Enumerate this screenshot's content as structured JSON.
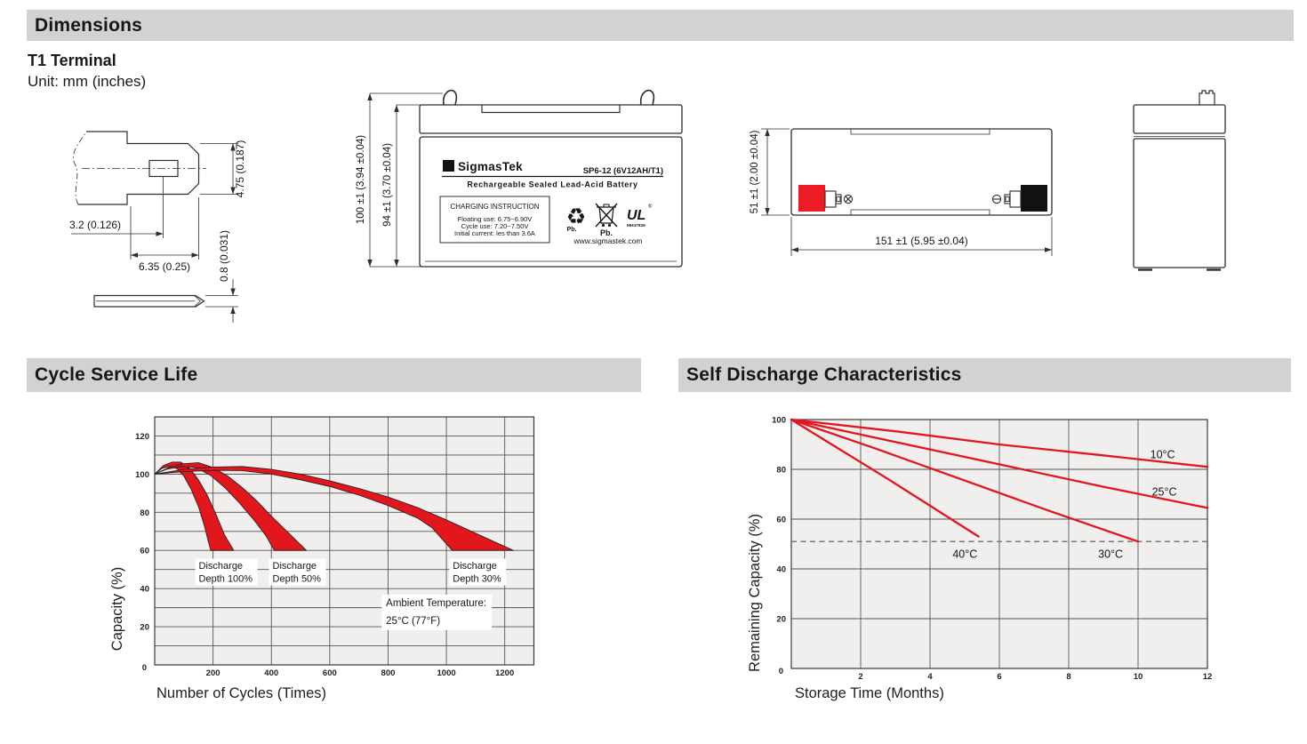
{
  "colors": {
    "header_bg": "#d2d2d2",
    "red": "#e2161d",
    "terminal_red": "#ed1c24",
    "terminal_black": "#111111",
    "plot_bg": "#f0efed",
    "grid": "#555555",
    "dashed_guide": "#7a7a7a"
  },
  "headers": {
    "dimensions": "Dimensions",
    "cycle": "Cycle Service Life",
    "self_discharge": "Self Discharge Characteristics"
  },
  "dimensions": {
    "terminal_title": "T1 Terminal",
    "unit_note": "Unit: mm (inches)",
    "t1": {
      "height": "4.75 (0.187)",
      "hole_offset": "3.2 (0.126)",
      "width": "6.35 (0.25)",
      "thickness": "0.8 (0.031)"
    },
    "front": {
      "overall_height": "100 ±1 (3.94 ±0.04)",
      "case_height": "94 ±1 (3.70 ±0.04)",
      "sigma": "Σ",
      "brand": "SigmasTek",
      "model": "SP6-12 (6V12AH/T1)",
      "type_line": "Rechargeable Sealed Lead-Acid Battery",
      "charging": {
        "title": "CHARGING INSTRUCTION",
        "floating": "Floating use: 6.75~6.90V",
        "cycle": "Cycle use: 7.20~7.50V",
        "initial": "Initial current: les than 3.6A"
      },
      "recycle_glyph": "♻",
      "pb1": "Pb.",
      "pb2": "Pb.",
      "ul_text": "UL",
      "ul_reg": "®",
      "ul_number": "MH47929",
      "website": "www.sigmastek.com"
    },
    "top": {
      "depth": "51 ±1 (2.00 ±0.04)",
      "length": "151 ±1 (5.95 ±0.04)"
    }
  },
  "chart_data": [
    {
      "type": "area",
      "title": "Cycle Service Life",
      "xlabel": "Number of Cycles (Times)",
      "ylabel": "Capacity (%)",
      "xlim": [
        0,
        1300
      ],
      "ylim": [
        0,
        130
      ],
      "x_ticks": [
        200,
        400,
        600,
        800,
        1000,
        1200
      ],
      "y_ticks": [
        20,
        40,
        60,
        80,
        100,
        120
      ],
      "origin_label": "0",
      "x_grid_step": 200,
      "y_grid_step": 10,
      "grid": true,
      "legend_position": "none",
      "ambient_note": [
        "Ambient Temperature:",
        "25°C (77°F)"
      ],
      "ambient_at": [
        793,
        30.8
      ],
      "bands": [
        {
          "name": "Discharge Depth 100%",
          "label": [
            "Discharge",
            "Depth 100%"
          ],
          "label_at": [
            151,
            50.3
          ],
          "label_w": 70,
          "upper": [
            [
              0,
              100
            ],
            [
              30,
              104.5
            ],
            [
              60,
              106.3
            ],
            [
              90,
              106.3
            ],
            [
              120,
              103
            ],
            [
              150,
              97
            ],
            [
              180,
              89
            ],
            [
              210,
              79
            ],
            [
              240,
              68
            ],
            [
              271,
              60
            ]
          ],
          "lower": [
            [
              0,
              100
            ],
            [
              25,
              103
            ],
            [
              50,
              104
            ],
            [
              75,
              103
            ],
            [
              100,
              99
            ],
            [
              125,
              92
            ],
            [
              150,
              83
            ],
            [
              170,
              73
            ],
            [
              185,
              64
            ],
            [
              192,
              60
            ]
          ]
        },
        {
          "name": "Discharge Depth 50%",
          "label": [
            "Discharge",
            "Depth 50%"
          ],
          "label_at": [
            404,
            50.3
          ],
          "label_w": 64,
          "upper": [
            [
              0,
              100
            ],
            [
              50,
              103.5
            ],
            [
              100,
              105.5
            ],
            [
              150,
              106
            ],
            [
              200,
              103.5
            ],
            [
              250,
              99
            ],
            [
              300,
              93
            ],
            [
              350,
              86
            ],
            [
              400,
              78
            ],
            [
              460,
              69
            ],
            [
              520,
              60
            ]
          ],
          "lower": [
            [
              0,
              100
            ],
            [
              40,
              102.5
            ],
            [
              90,
              104
            ],
            [
              140,
              103.5
            ],
            [
              190,
              99.5
            ],
            [
              240,
              93
            ],
            [
              290,
              85
            ],
            [
              340,
              76
            ],
            [
              380,
              68
            ],
            [
              410,
              60
            ]
          ]
        },
        {
          "name": "Discharge Depth 30%",
          "label": [
            "Discharge",
            "Depth 30%"
          ],
          "label_at": [
            1022,
            50.3
          ],
          "label_w": 64,
          "upper": [
            [
              0,
              100
            ],
            [
              100,
              102.5
            ],
            [
              200,
              103.7
            ],
            [
              300,
              104
            ],
            [
              400,
              102.5
            ],
            [
              500,
              100
            ],
            [
              600,
              96.5
            ],
            [
              700,
              92.5
            ],
            [
              800,
              88
            ],
            [
              900,
              82.5
            ],
            [
              1000,
              76
            ],
            [
              1100,
              69
            ],
            [
              1230,
              60
            ]
          ],
          "lower": [
            [
              0,
              100
            ],
            [
              100,
              101.3
            ],
            [
              200,
              102
            ],
            [
              300,
              101.8
            ],
            [
              400,
              100
            ],
            [
              500,
              97
            ],
            [
              600,
              93.5
            ],
            [
              700,
              89
            ],
            [
              800,
              83.5
            ],
            [
              900,
              77
            ],
            [
              950,
              72
            ],
            [
              1020,
              60
            ]
          ]
        }
      ]
    },
    {
      "type": "line",
      "title": "Self Discharge Characteristics",
      "xlabel": "Storage Time (Months)",
      "ylabel": "Remaining Capacity (%)",
      "xlim": [
        0,
        12
      ],
      "ylim": [
        0,
        100
      ],
      "x_ticks": [
        2,
        4,
        6,
        8,
        10,
        12
      ],
      "y_ticks": [
        20,
        40,
        60,
        80,
        100
      ],
      "origin_label": "0",
      "x_grid_step": 2,
      "y_grid_step": 20,
      "grid": true,
      "legend_position": "inline-labels",
      "dashed_guide_y": 51,
      "series": [
        {
          "name": "10°C",
          "points": [
            [
              0,
              100
            ],
            [
              3,
              95.3
            ],
            [
              6,
              90
            ],
            [
              9,
              85.6
            ],
            [
              12,
              81
            ]
          ],
          "label_at": [
            10.35,
            84.5
          ]
        },
        {
          "name": "25°C",
          "points": [
            [
              0,
              100
            ],
            [
              3,
              91
            ],
            [
              6,
              82
            ],
            [
              9,
              73
            ],
            [
              12,
              64.5
            ]
          ],
          "label_at": [
            10.4,
            69.5
          ]
        },
        {
          "name": "30°C",
          "points": [
            [
              0,
              100
            ],
            [
              2.5,
              88
            ],
            [
              5,
              75.5
            ],
            [
              7.5,
              63
            ],
            [
              10,
              51
            ]
          ],
          "label_at": [
            8.85,
            44.5
          ]
        },
        {
          "name": "40°C",
          "points": [
            [
              0,
              100
            ],
            [
              1.4,
              88
            ],
            [
              2.8,
              76
            ],
            [
              4.1,
              64.5
            ],
            [
              5.4,
              53
            ]
          ],
          "label_at": [
            4.65,
            44.5
          ]
        }
      ]
    }
  ]
}
